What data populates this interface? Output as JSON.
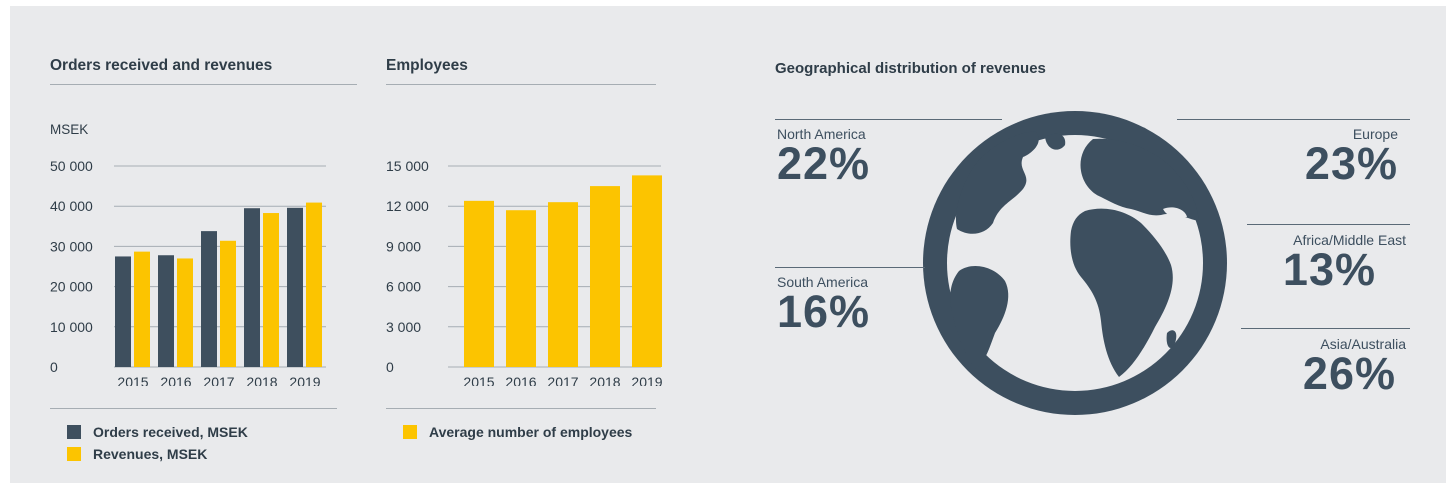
{
  "colors": {
    "dark": "#3e4f5e",
    "yellow": "#fcc400",
    "globe": "#3d4f5f",
    "land": "#e9eaec"
  },
  "chart_data": [
    {
      "type": "bar",
      "title": "Orders received and revenues",
      "ylabel": "MSEK",
      "categories": [
        "2015",
        "2016",
        "2017",
        "2018",
        "2019"
      ],
      "ylim": [
        0,
        50000
      ],
      "yticks": [
        0,
        10000,
        20000,
        30000,
        40000,
        50000
      ],
      "ytick_labels": [
        "0",
        "10 000",
        "20 000",
        "30 000",
        "40 000",
        "50 000"
      ],
      "grid": true,
      "legend_position": "bottom",
      "series": [
        {
          "name": "Orders received, MSEK",
          "color": "#3e4f5e",
          "values": [
            27500,
            27800,
            33800,
            39500,
            39600
          ]
        },
        {
          "name": "Revenues, MSEK",
          "color": "#fcc400",
          "values": [
            28700,
            27000,
            31400,
            38300,
            40900
          ]
        }
      ]
    },
    {
      "type": "bar",
      "title": "Employees",
      "ylabel": "",
      "categories": [
        "2015",
        "2016",
        "2017",
        "2018",
        "2019"
      ],
      "ylim": [
        0,
        15000
      ],
      "yticks": [
        0,
        3000,
        6000,
        9000,
        12000,
        15000
      ],
      "ytick_labels": [
        "0",
        "3 000",
        "6 000",
        "9 000",
        "12 000",
        "15 000"
      ],
      "grid": true,
      "legend_position": "bottom",
      "series": [
        {
          "name": "Average number of employees",
          "color": "#fcc400",
          "values": [
            12400,
            11700,
            12300,
            13500,
            14300
          ]
        }
      ]
    },
    {
      "type": "pie",
      "title": "Geographical distribution of revenues",
      "categories": [
        "North America",
        "Europe",
        "Africa/Middle East",
        "South America",
        "Asia/Australia"
      ],
      "values": [
        22,
        23,
        13,
        16,
        26
      ],
      "labels": [
        "22%",
        "23%",
        "13%",
        "16%",
        "26%"
      ]
    }
  ]
}
